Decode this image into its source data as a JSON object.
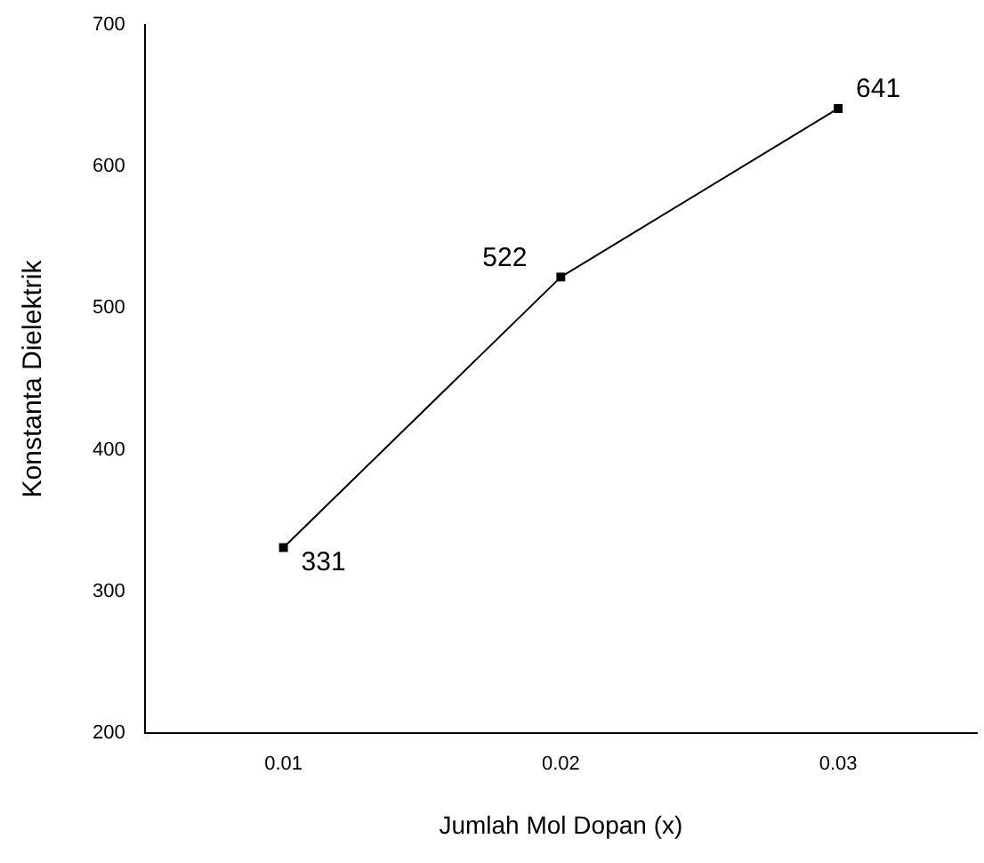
{
  "chart_data": {
    "type": "line",
    "xlabel": "Jumlah Mol Dopan (x)",
    "ylabel": "Konstanta Dielektrik",
    "x": [
      0.01,
      0.02,
      0.03
    ],
    "series": [
      {
        "color": "#000000",
        "values": [
          331,
          522,
          641
        ]
      }
    ],
    "xlim": [
      0.005,
      0.035
    ],
    "xticks": [
      0.01,
      0.02,
      0.03
    ],
    "ylim": [
      200,
      700
    ],
    "yticks": [
      200,
      300,
      400,
      500,
      600,
      700
    ],
    "grid": false,
    "legend": false,
    "marker": "square",
    "line_style": "solid",
    "data_labels": true
  }
}
